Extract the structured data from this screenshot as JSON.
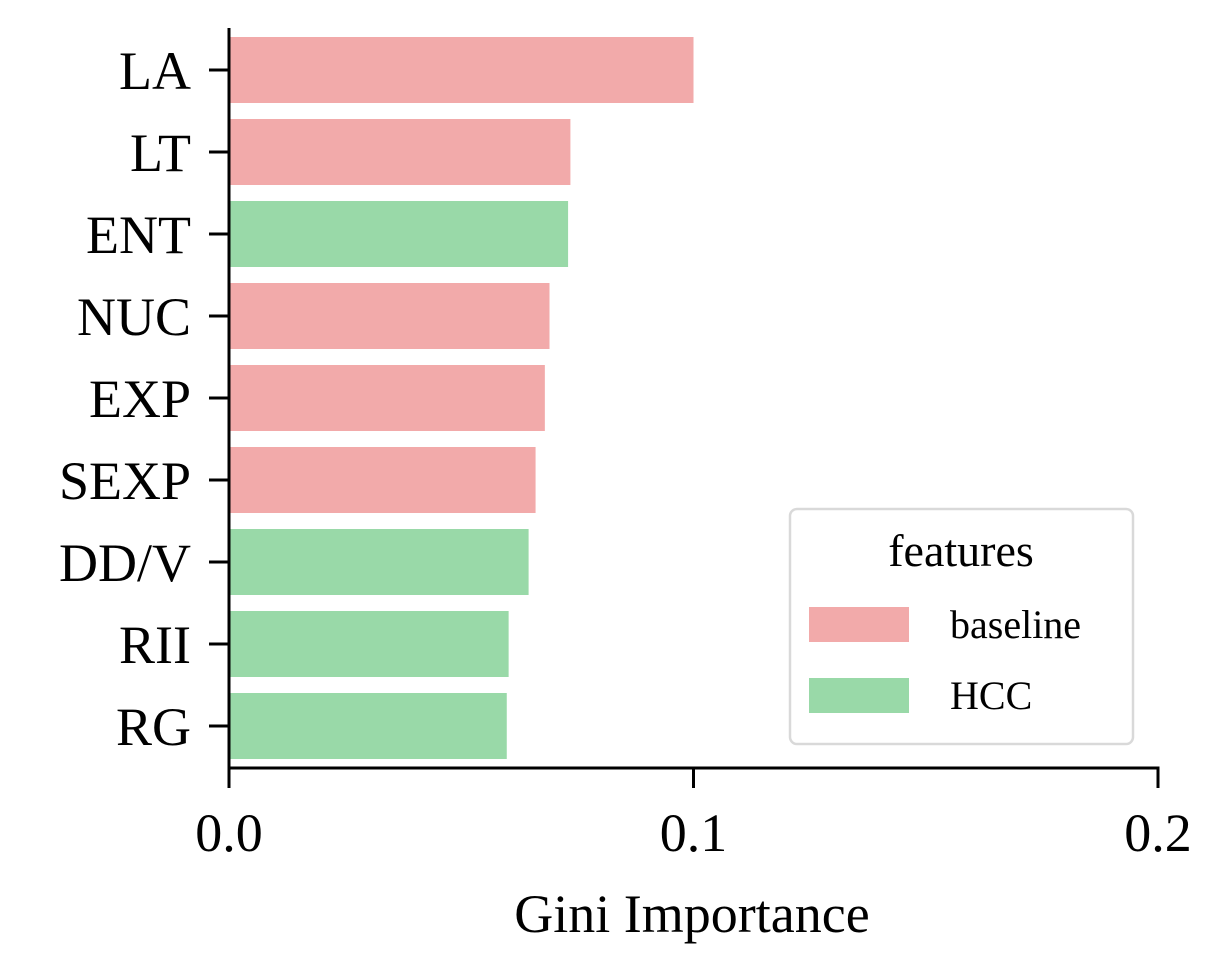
{
  "chart_data": {
    "type": "bar",
    "orientation": "horizontal",
    "categories": [
      "LA",
      "LT",
      "ENT",
      "NUC",
      "EXP",
      "SEXP",
      "DD/V",
      "RII",
      "RG"
    ],
    "values": [
      0.1,
      0.0735,
      0.073,
      0.069,
      0.068,
      0.066,
      0.0645,
      0.0602,
      0.0598
    ],
    "groups": [
      "baseline",
      "baseline",
      "HCC",
      "baseline",
      "baseline",
      "baseline",
      "HCC",
      "HCC",
      "HCC"
    ],
    "xlabel": "Gini Importance",
    "xlim": [
      0,
      0.2
    ],
    "xticks": [
      0.0,
      0.1,
      0.2
    ],
    "xtick_labels": [
      "0.0",
      "0.1",
      "0.2"
    ],
    "grid": false,
    "legend": {
      "title": "features",
      "placement": "lower-right",
      "entries": [
        {
          "label": "baseline",
          "color": "#f2aaaa"
        },
        {
          "label": "HCC",
          "color": "#99d9a8"
        }
      ]
    }
  }
}
